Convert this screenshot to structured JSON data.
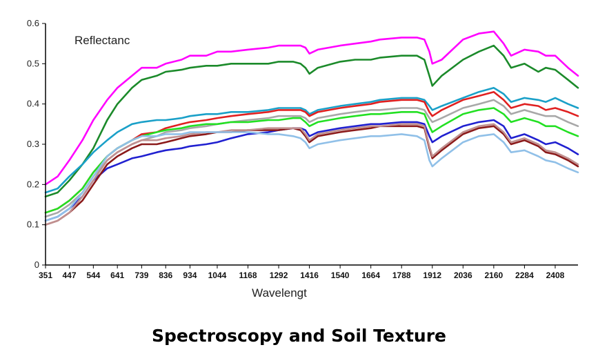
{
  "caption": "Spectroscopy and Soil Texture",
  "chart_data": {
    "type": "line",
    "ylabel": "Reflectanc",
    "xlabel": "Wavelengt",
    "ylim": [
      0,
      0.6
    ],
    "xlim": [
      351,
      2500
    ],
    "y_ticks": [
      "0",
      "0.1",
      "0.2",
      "0.3",
      "0.4",
      "0.5",
      "0.6"
    ],
    "x_ticks": [
      "351",
      "447",
      "544",
      "641",
      "739",
      "836",
      "934",
      "1044",
      "1168",
      "1292",
      "1416",
      "1540",
      "1664",
      "1788",
      "1912",
      "2036",
      "2160",
      "2284",
      "2408"
    ],
    "grid": false,
    "x": [
      351,
      400,
      447,
      500,
      544,
      600,
      641,
      700,
      739,
      800,
      836,
      900,
      934,
      1000,
      1044,
      1100,
      1168,
      1250,
      1292,
      1350,
      1380,
      1400,
      1416,
      1450,
      1540,
      1600,
      1664,
      1700,
      1788,
      1850,
      1880,
      1900,
      1912,
      1950,
      2036,
      2100,
      2160,
      2200,
      2230,
      2284,
      2340,
      2370,
      2408,
      2460,
      2500
    ],
    "series": [
      {
        "color": "#ff00ff",
        "values": [
          0.2,
          0.22,
          0.26,
          0.31,
          0.36,
          0.41,
          0.44,
          0.47,
          0.49,
          0.49,
          0.5,
          0.51,
          0.52,
          0.52,
          0.53,
          0.53,
          0.535,
          0.54,
          0.545,
          0.545,
          0.545,
          0.54,
          0.525,
          0.535,
          0.545,
          0.55,
          0.555,
          0.56,
          0.565,
          0.565,
          0.56,
          0.53,
          0.5,
          0.51,
          0.56,
          0.575,
          0.58,
          0.55,
          0.52,
          0.535,
          0.53,
          0.52,
          0.52,
          0.49,
          0.47
        ]
      },
      {
        "color": "#1b8a2a",
        "values": [
          0.17,
          0.18,
          0.21,
          0.25,
          0.29,
          0.36,
          0.4,
          0.44,
          0.46,
          0.47,
          0.48,
          0.485,
          0.49,
          0.495,
          0.495,
          0.5,
          0.5,
          0.5,
          0.505,
          0.505,
          0.5,
          0.49,
          0.475,
          0.49,
          0.505,
          0.51,
          0.51,
          0.515,
          0.52,
          0.52,
          0.51,
          0.47,
          0.445,
          0.47,
          0.51,
          0.53,
          0.545,
          0.52,
          0.49,
          0.5,
          0.48,
          0.49,
          0.485,
          0.46,
          0.44
        ]
      },
      {
        "color": "#1aa0c8",
        "values": [
          0.18,
          0.19,
          0.22,
          0.25,
          0.28,
          0.31,
          0.33,
          0.35,
          0.355,
          0.36,
          0.36,
          0.365,
          0.37,
          0.375,
          0.375,
          0.38,
          0.38,
          0.385,
          0.39,
          0.39,
          0.39,
          0.385,
          0.375,
          0.385,
          0.395,
          0.4,
          0.405,
          0.41,
          0.415,
          0.415,
          0.41,
          0.395,
          0.385,
          0.395,
          0.415,
          0.43,
          0.44,
          0.425,
          0.405,
          0.415,
          0.41,
          0.405,
          0.415,
          0.4,
          0.39
        ]
      },
      {
        "color": "#e02020",
        "values": [
          0.13,
          0.14,
          0.16,
          0.19,
          0.23,
          0.27,
          0.29,
          0.31,
          0.325,
          0.33,
          0.34,
          0.35,
          0.355,
          0.36,
          0.365,
          0.37,
          0.375,
          0.38,
          0.385,
          0.385,
          0.385,
          0.38,
          0.37,
          0.38,
          0.39,
          0.395,
          0.4,
          0.405,
          0.41,
          0.41,
          0.405,
          0.38,
          0.37,
          0.385,
          0.41,
          0.42,
          0.43,
          0.41,
          0.39,
          0.4,
          0.395,
          0.385,
          0.39,
          0.38,
          0.37
        ]
      },
      {
        "color": "#a8a8a8",
        "values": [
          0.12,
          0.13,
          0.15,
          0.18,
          0.22,
          0.26,
          0.28,
          0.3,
          0.31,
          0.32,
          0.33,
          0.335,
          0.34,
          0.345,
          0.35,
          0.355,
          0.36,
          0.365,
          0.37,
          0.37,
          0.37,
          0.365,
          0.355,
          0.365,
          0.375,
          0.38,
          0.385,
          0.385,
          0.39,
          0.39,
          0.385,
          0.365,
          0.355,
          0.365,
          0.39,
          0.4,
          0.41,
          0.395,
          0.375,
          0.385,
          0.375,
          0.37,
          0.37,
          0.355,
          0.345
        ]
      },
      {
        "color": "#22e022",
        "values": [
          0.13,
          0.14,
          0.16,
          0.19,
          0.23,
          0.27,
          0.29,
          0.31,
          0.32,
          0.33,
          0.335,
          0.34,
          0.345,
          0.35,
          0.35,
          0.355,
          0.355,
          0.36,
          0.36,
          0.365,
          0.365,
          0.355,
          0.345,
          0.355,
          0.365,
          0.37,
          0.375,
          0.375,
          0.38,
          0.38,
          0.375,
          0.345,
          0.33,
          0.345,
          0.375,
          0.385,
          0.39,
          0.375,
          0.355,
          0.365,
          0.355,
          0.345,
          0.345,
          0.33,
          0.32
        ]
      },
      {
        "color": "#2020d0",
        "values": [
          0.11,
          0.12,
          0.14,
          0.17,
          0.21,
          0.24,
          0.25,
          0.265,
          0.27,
          0.28,
          0.285,
          0.29,
          0.295,
          0.3,
          0.305,
          0.315,
          0.325,
          0.33,
          0.335,
          0.34,
          0.34,
          0.335,
          0.32,
          0.33,
          0.34,
          0.345,
          0.35,
          0.35,
          0.355,
          0.355,
          0.35,
          0.32,
          0.305,
          0.32,
          0.345,
          0.355,
          0.36,
          0.345,
          0.315,
          0.325,
          0.31,
          0.3,
          0.305,
          0.29,
          0.275
        ]
      },
      {
        "color": "#8b1a1a",
        "values": [
          0.1,
          0.11,
          0.13,
          0.16,
          0.2,
          0.25,
          0.27,
          0.29,
          0.3,
          0.3,
          0.305,
          0.315,
          0.32,
          0.325,
          0.33,
          0.33,
          0.335,
          0.335,
          0.335,
          0.34,
          0.335,
          0.32,
          0.305,
          0.32,
          0.33,
          0.335,
          0.34,
          0.345,
          0.345,
          0.345,
          0.34,
          0.29,
          0.265,
          0.285,
          0.325,
          0.34,
          0.345,
          0.325,
          0.3,
          0.31,
          0.295,
          0.28,
          0.275,
          0.26,
          0.245
        ]
      },
      {
        "color": "#c09090",
        "values": [
          0.1,
          0.11,
          0.13,
          0.17,
          0.21,
          0.26,
          0.28,
          0.3,
          0.31,
          0.31,
          0.315,
          0.32,
          0.325,
          0.33,
          0.33,
          0.335,
          0.335,
          0.34,
          0.34,
          0.34,
          0.34,
          0.325,
          0.31,
          0.325,
          0.335,
          0.34,
          0.345,
          0.345,
          0.35,
          0.35,
          0.345,
          0.295,
          0.27,
          0.29,
          0.33,
          0.345,
          0.35,
          0.33,
          0.305,
          0.315,
          0.3,
          0.285,
          0.28,
          0.265,
          0.25
        ]
      },
      {
        "color": "#90c0e8",
        "values": [
          0.11,
          0.12,
          0.14,
          0.18,
          0.22,
          0.27,
          0.29,
          0.31,
          0.32,
          0.32,
          0.325,
          0.325,
          0.33,
          0.33,
          0.33,
          0.33,
          0.33,
          0.325,
          0.325,
          0.32,
          0.315,
          0.305,
          0.29,
          0.3,
          0.31,
          0.315,
          0.32,
          0.32,
          0.325,
          0.32,
          0.31,
          0.26,
          0.245,
          0.265,
          0.305,
          0.32,
          0.325,
          0.305,
          0.28,
          0.285,
          0.27,
          0.26,
          0.255,
          0.24,
          0.23
        ]
      }
    ]
  }
}
